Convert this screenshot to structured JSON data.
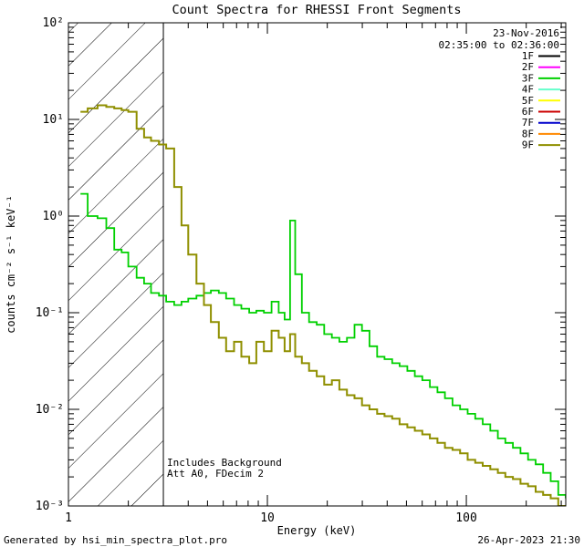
{
  "title": "Count Spectra for RHESSI Front Segments",
  "header": {
    "date": "23-Nov-2016",
    "time_range": "02:35:00 to 02:36:00"
  },
  "annotations": {
    "line1": "Includes Background",
    "line2": "Att A0, FDecim 2"
  },
  "footer": {
    "generated_by": "Generated by hsi_min_spectra_plot.pro",
    "timestamp": "26-Apr-2023 21:30"
  },
  "colors": {
    "foreground": "#000000",
    "datetime_text": "#008b8b",
    "hatch": "#000000"
  },
  "chart_data": {
    "type": "line",
    "title": "Count Spectra for RHESSI Front Segments",
    "xlabel": "Energy (keV)",
    "ylabel": "counts cm⁻² s⁻¹ keV⁻¹",
    "xscale": "log",
    "yscale": "log",
    "xlim": [
      1,
      316
    ],
    "ylim": [
      0.001,
      100
    ],
    "grid": false,
    "legend_position": "top-right-inside",
    "background_region": {
      "x_start": 1,
      "x_end": 3,
      "style": "diagonal-hatch",
      "meaning": "background interval"
    },
    "xticks": [
      {
        "value": 1,
        "label": "1"
      },
      {
        "value": 10,
        "label": "10"
      },
      {
        "value": 100,
        "label": "100"
      }
    ],
    "yticks": [
      {
        "value": 100,
        "label": "10²"
      },
      {
        "value": 10,
        "label": "10¹"
      },
      {
        "value": 1,
        "label": "10⁰"
      },
      {
        "value": 0.1,
        "label": "10⁻¹"
      },
      {
        "value": 0.01,
        "label": "10⁻²"
      },
      {
        "value": 0.001,
        "label": "10⁻³"
      }
    ],
    "legend": [
      {
        "label": "1F",
        "color": "#000000"
      },
      {
        "label": "2F",
        "color": "#ff00ff"
      },
      {
        "label": "3F",
        "color": "#00d000"
      },
      {
        "label": "4F",
        "color": "#66ffcc"
      },
      {
        "label": "5F",
        "color": "#ffff00"
      },
      {
        "label": "6F",
        "color": "#cc0000"
      },
      {
        "label": "7F",
        "color": "#0000cc"
      },
      {
        "label": "8F",
        "color": "#ff8800"
      },
      {
        "label": "9F",
        "color": "#8f8f00"
      }
    ],
    "series": [
      {
        "name": "3F",
        "color": "#00d000",
        "width": 1.8,
        "x": [
          1.15,
          1.25,
          1.4,
          1.55,
          1.7,
          1.85,
          2.0,
          2.2,
          2.4,
          2.6,
          2.85,
          3.1,
          3.4,
          3.7,
          4.0,
          4.4,
          4.8,
          5.2,
          5.7,
          6.2,
          6.8,
          7.4,
          8.1,
          8.8,
          9.6,
          10.5,
          11.4,
          12.2,
          13.0,
          13.8,
          14.9,
          16.2,
          17.7,
          19.3,
          21.1,
          23.0,
          25.1,
          27.4,
          29.9,
          32.6,
          35.6,
          38.8,
          42.4,
          46.2,
          50.5,
          55.1,
          60.1,
          65.6,
          71.6,
          78.1,
          85.2,
          93.0,
          101.5,
          110.8,
          120.9,
          131.9,
          144.0,
          157.1,
          171.5,
          187.1,
          204.2,
          222.9,
          243.2,
          265.4,
          289.7,
          316.0
        ],
        "y": [
          1.7,
          1.0,
          0.95,
          0.75,
          0.45,
          0.42,
          0.3,
          0.23,
          0.2,
          0.16,
          0.15,
          0.13,
          0.12,
          0.13,
          0.14,
          0.15,
          0.16,
          0.17,
          0.16,
          0.14,
          0.12,
          0.11,
          0.1,
          0.105,
          0.1,
          0.13,
          0.1,
          0.085,
          0.9,
          0.25,
          0.1,
          0.08,
          0.075,
          0.06,
          0.055,
          0.05,
          0.055,
          0.075,
          0.065,
          0.045,
          0.035,
          0.033,
          0.03,
          0.028,
          0.025,
          0.022,
          0.02,
          0.017,
          0.015,
          0.013,
          0.011,
          0.01,
          0.009,
          0.008,
          0.007,
          0.006,
          0.005,
          0.0045,
          0.004,
          0.0035,
          0.003,
          0.0027,
          0.0022,
          0.0018,
          0.0013,
          0.0012
        ]
      },
      {
        "name": "9F",
        "color": "#8f8f00",
        "width": 2.0,
        "x": [
          1.15,
          1.25,
          1.4,
          1.55,
          1.7,
          1.85,
          2.0,
          2.2,
          2.4,
          2.6,
          2.85,
          3.1,
          3.4,
          3.7,
          4.0,
          4.4,
          4.8,
          5.2,
          5.7,
          6.2,
          6.8,
          7.4,
          8.1,
          8.8,
          9.6,
          10.5,
          11.4,
          12.2,
          13.0,
          13.8,
          14.9,
          16.2,
          17.7,
          19.3,
          21.1,
          23.0,
          25.1,
          27.4,
          29.9,
          32.6,
          35.6,
          38.8,
          42.4,
          46.2,
          50.5,
          55.1,
          60.1,
          65.6,
          71.6,
          78.1,
          85.2,
          93.0,
          101.5,
          110.8,
          120.9,
          131.9,
          144.0,
          157.1,
          171.5,
          187.1,
          204.2,
          222.9,
          243.2,
          265.4,
          289.7,
          316.0
        ],
        "y": [
          12,
          13,
          14,
          13.5,
          13,
          12.5,
          12,
          8,
          6.5,
          6,
          5.5,
          5,
          2.0,
          0.8,
          0.4,
          0.2,
          0.12,
          0.08,
          0.055,
          0.04,
          0.05,
          0.035,
          0.03,
          0.05,
          0.04,
          0.065,
          0.055,
          0.04,
          0.06,
          0.035,
          0.03,
          0.025,
          0.022,
          0.018,
          0.02,
          0.016,
          0.014,
          0.013,
          0.011,
          0.01,
          0.009,
          0.0085,
          0.008,
          0.007,
          0.0065,
          0.006,
          0.0055,
          0.005,
          0.0045,
          0.004,
          0.0038,
          0.0035,
          0.003,
          0.0028,
          0.0026,
          0.0024,
          0.0022,
          0.002,
          0.0019,
          0.0017,
          0.0016,
          0.0014,
          0.0013,
          0.0012,
          0.001,
          0.001
        ]
      }
    ]
  }
}
